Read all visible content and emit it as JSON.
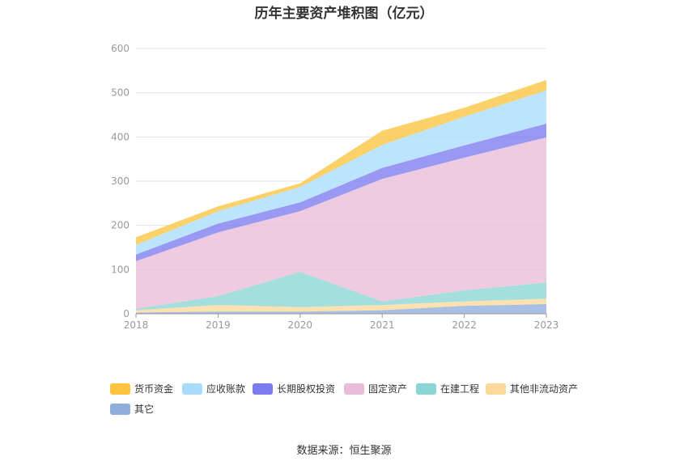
{
  "chart_data": {
    "type": "area",
    "stacked": true,
    "title": "历年主要资产堆积图（亿元）",
    "categories": [
      "2018",
      "2019",
      "2020",
      "2021",
      "2022",
      "2023"
    ],
    "ylim": [
      0,
      600
    ],
    "yticks": [
      0,
      100,
      200,
      300,
      400,
      500,
      600
    ],
    "grid": true,
    "legend_position": "bottom",
    "series": [
      {
        "name": "其它",
        "color": "#8eaedb",
        "values": [
          3,
          5,
          5,
          8,
          18,
          22
        ]
      },
      {
        "name": "其他非流动资产",
        "color": "#fcd89a",
        "values": [
          5,
          15,
          10,
          12,
          10,
          12
        ]
      },
      {
        "name": "在建工程",
        "color": "#8ad6d4",
        "values": [
          3,
          20,
          80,
          8,
          25,
          37
        ]
      },
      {
        "name": "固定资产",
        "color": "#e9bcd9",
        "values": [
          108,
          144,
          137,
          277,
          300,
          328
        ]
      },
      {
        "name": "长期股权投资",
        "color": "#7c7cf0",
        "values": [
          15,
          20,
          20,
          25,
          28,
          31
        ]
      },
      {
        "name": "应收账款",
        "color": "#a9dcfb",
        "values": [
          22,
          28,
          35,
          52,
          65,
          75
        ]
      },
      {
        "name": "货币资金",
        "color": "#fdc43f",
        "values": [
          17,
          11,
          8,
          32,
          20,
          24
        ]
      }
    ],
    "legend_order": [
      "货币资金",
      "应收账款",
      "长期股权投资",
      "固定资产",
      "在建工程",
      "其他非流动资产",
      "其它"
    ]
  },
  "footer": {
    "source": "数据来源：恒生聚源"
  }
}
